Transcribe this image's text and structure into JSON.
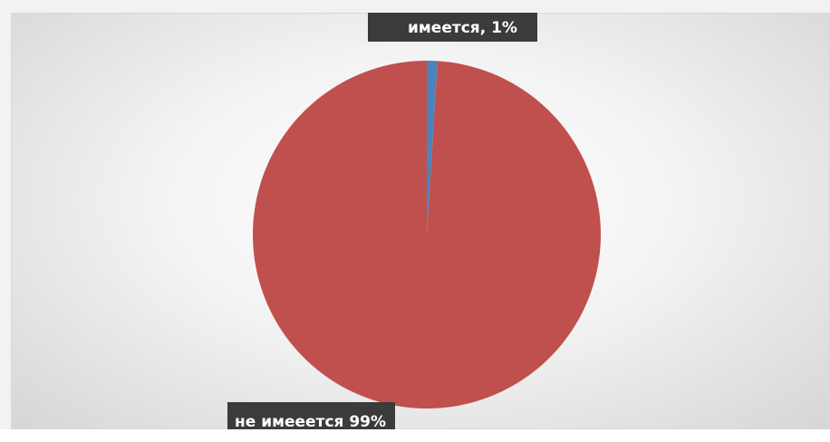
{
  "chart_data": {
    "type": "pie",
    "categories": [
      "имеется",
      "не имееется"
    ],
    "values": [
      1,
      99
    ],
    "colors": [
      "#4F81BD",
      "#C0504D"
    ],
    "data_labels": [
      "имеется, 1%",
      "не имееется 99%"
    ],
    "legend": "none"
  }
}
